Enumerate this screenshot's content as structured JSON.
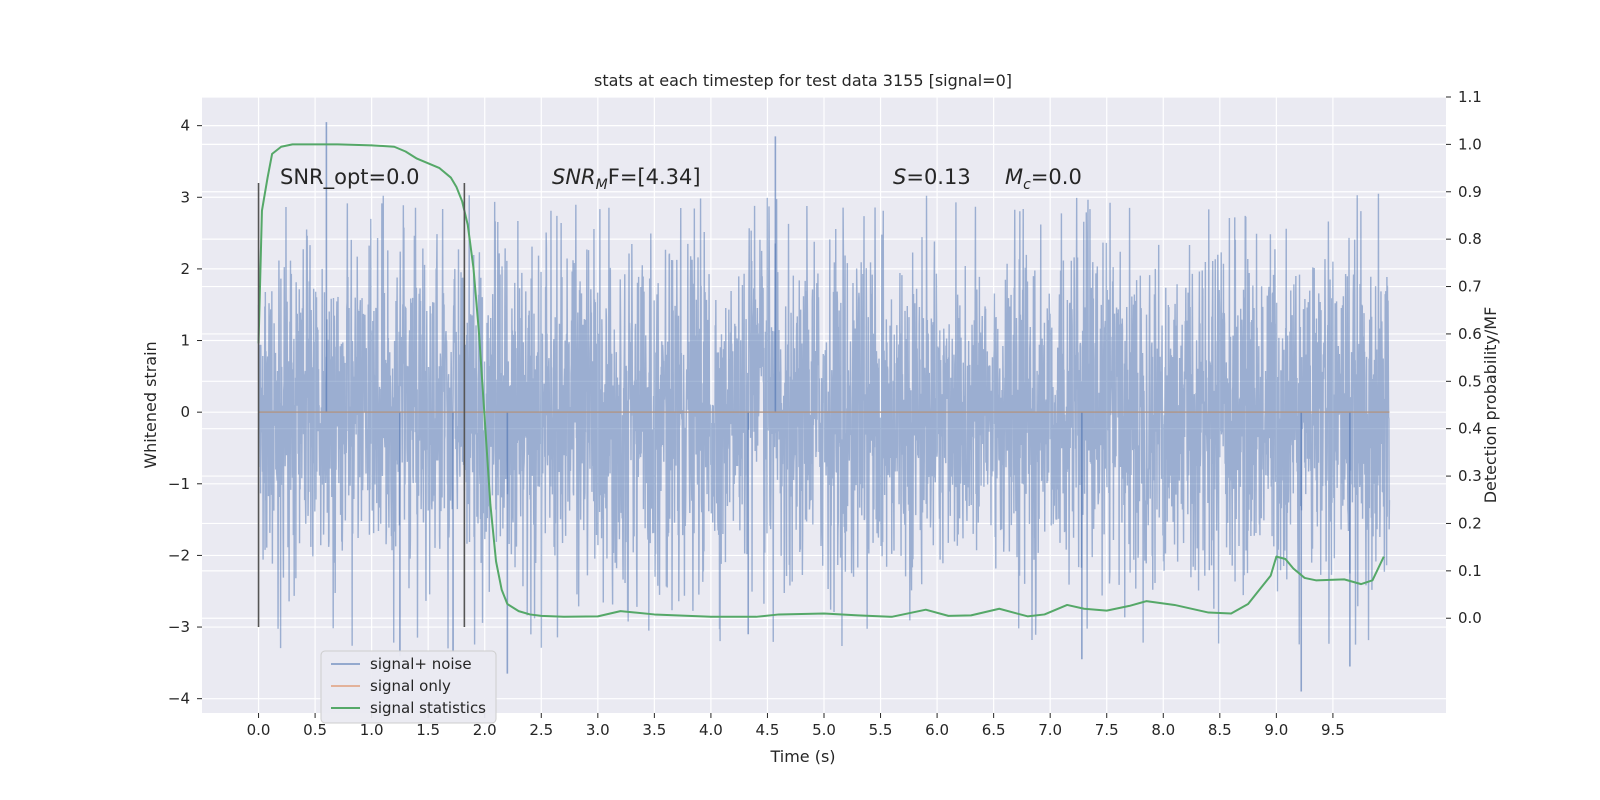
{
  "chart_data": {
    "type": "line",
    "title": "stats at each timestep for test data 3155 [signal=0]",
    "xlabel": "Time (s)",
    "ylabel": "Whitened strain",
    "ylabel_right": "Detection probability/MF",
    "xlim": [
      -0.5,
      10.5
    ],
    "ylim": [
      -4.2,
      4.4
    ],
    "ylim_right": [
      -0.2,
      1.1
    ],
    "x_ticks": [
      "0.0",
      "0.5",
      "1.0",
      "1.5",
      "2.0",
      "2.5",
      "3.0",
      "3.5",
      "4.0",
      "4.5",
      "5.0",
      "5.5",
      "6.0",
      "6.5",
      "7.0",
      "7.5",
      "8.0",
      "8.5",
      "9.0",
      "9.5"
    ],
    "y_ticks": [
      "4",
      "3",
      "2",
      "1",
      "0",
      "−1",
      "−2",
      "−3",
      "−4"
    ],
    "y_ticks_right": [
      "1.1",
      "1.0",
      "0.9",
      "0.8",
      "0.7",
      "0.6",
      "0.5",
      "0.4",
      "0.3",
      "0.2",
      "0.1",
      "0.0"
    ],
    "grid": true,
    "legend_position": "lower-left",
    "annotations": {
      "snr_opt": "SNR_opt=0.0",
      "snr_mf_var": "SNR",
      "snr_mf_sub": "M",
      "snr_mf_tail": "F=[4.34]",
      "s_var": "S",
      "s_val": "=0.13",
      "mc_var": "M",
      "mc_sub": "c",
      "mc_val": "=0.0"
    },
    "vertical_markers": [
      0.0,
      1.82
    ],
    "colors": {
      "background": "#eaeaf2",
      "grid": "#ffffff",
      "signal_noise": "#4c72b0",
      "signal_only": "#dd8452",
      "signal_statistics": "#55a868",
      "marker": "#555555"
    },
    "series": [
      {
        "name": "signal+ noise",
        "axis": "left",
        "kind": "noise",
        "x_range": [
          0.0,
          10.0
        ],
        "band_sigma": 1.2,
        "peak_max": 4.05,
        "peak_min": -3.9
      },
      {
        "name": "signal only",
        "axis": "left",
        "x": [
          0.0,
          10.0
        ],
        "y": [
          0.0,
          0.0
        ]
      },
      {
        "name": "signal statistics",
        "axis": "right",
        "x": [
          0.0,
          0.03,
          0.08,
          0.12,
          0.2,
          0.3,
          0.5,
          0.7,
          1.0,
          1.2,
          1.3,
          1.4,
          1.5,
          1.6,
          1.7,
          1.75,
          1.8,
          1.85,
          1.9,
          1.95,
          2.0,
          2.05,
          2.1,
          2.15,
          2.2,
          2.3,
          2.4,
          2.5,
          2.7,
          3.0,
          3.2,
          3.5,
          4.0,
          4.4,
          4.6,
          5.0,
          5.3,
          5.6,
          5.9,
          6.1,
          6.3,
          6.55,
          6.8,
          6.95,
          7.15,
          7.3,
          7.5,
          7.7,
          7.85,
          8.1,
          8.4,
          8.6,
          8.75,
          8.85,
          8.95,
          9.0,
          9.08,
          9.15,
          9.25,
          9.35,
          9.6,
          9.75,
          9.85,
          9.95
        ],
        "y": [
          0.58,
          0.86,
          0.93,
          0.98,
          0.995,
          1.0,
          1.0,
          1.0,
          0.998,
          0.995,
          0.985,
          0.97,
          0.96,
          0.95,
          0.93,
          0.91,
          0.88,
          0.83,
          0.74,
          0.6,
          0.42,
          0.24,
          0.12,
          0.06,
          0.03,
          0.015,
          0.008,
          0.005,
          0.003,
          0.004,
          0.015,
          0.008,
          0.003,
          0.003,
          0.008,
          0.01,
          0.006,
          0.003,
          0.018,
          0.005,
          0.006,
          0.02,
          0.004,
          0.008,
          0.028,
          0.02,
          0.016,
          0.026,
          0.036,
          0.028,
          0.012,
          0.01,
          0.03,
          0.06,
          0.09,
          0.13,
          0.125,
          0.105,
          0.085,
          0.08,
          0.082,
          0.072,
          0.08,
          0.13
        ]
      }
    ]
  }
}
